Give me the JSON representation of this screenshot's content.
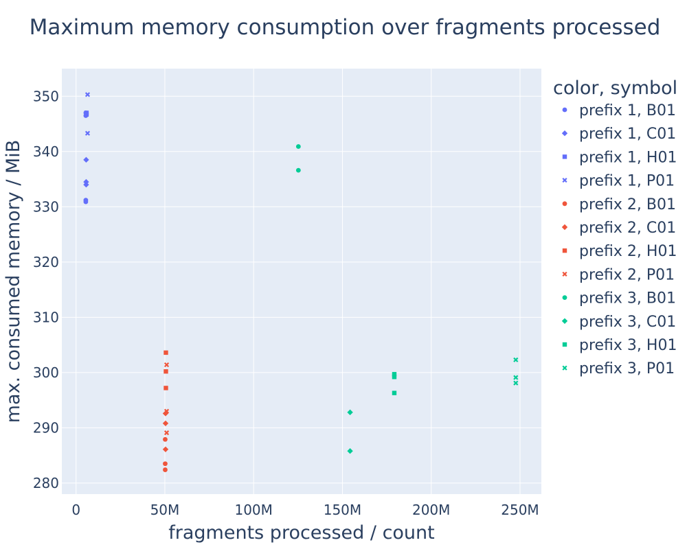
{
  "chart_data": {
    "type": "scatter",
    "title": "Maximum memory consumption over fragments processed",
    "xlabel": "fragments processed / count",
    "ylabel": "max. consumed memory / MiB",
    "xlim": [
      -8000000,
      262000000
    ],
    "ylim": [
      278,
      355
    ],
    "x_ticks": [
      0,
      50000000,
      100000000,
      150000000,
      200000000,
      250000000
    ],
    "x_tick_labels": [
      "0",
      "50M",
      "100M",
      "150M",
      "200M",
      "250M"
    ],
    "y_ticks": [
      280,
      290,
      300,
      310,
      320,
      330,
      340,
      350
    ],
    "y_tick_labels": [
      "280",
      "290",
      "300",
      "310",
      "320",
      "330",
      "340",
      "350"
    ],
    "grid": true,
    "legend_title": "color, symbol",
    "legend_position": "right",
    "colors": {
      "prefix 1": "#636efa",
      "prefix 2": "#ef553b",
      "prefix 3": "#00cc96"
    },
    "series": [
      {
        "name": "prefix 1, B01",
        "color": "#636efa",
        "symbol": "circle",
        "points": [
          [
            5500000,
            347.0
          ],
          [
            5500000,
            346.5
          ],
          [
            5500000,
            331.2
          ],
          [
            5500000,
            330.9
          ]
        ]
      },
      {
        "name": "prefix 1, C01",
        "color": "#636efa",
        "symbol": "diamond",
        "points": [
          [
            5700000,
            338.5
          ],
          [
            5700000,
            334.5
          ],
          [
            5700000,
            334.0
          ]
        ]
      },
      {
        "name": "prefix 1, H01",
        "color": "#636efa",
        "symbol": "square",
        "points": [
          [
            5900000,
            347.0
          ],
          [
            5900000,
            346.7
          ]
        ]
      },
      {
        "name": "prefix 1, P01",
        "color": "#636efa",
        "symbol": "x",
        "points": [
          [
            6500000,
            350.3
          ],
          [
            6500000,
            343.3
          ]
        ]
      },
      {
        "name": "prefix 2, B01",
        "color": "#ef553b",
        "symbol": "circle",
        "points": [
          [
            50200000,
            287.9
          ],
          [
            50200000,
            283.5
          ],
          [
            50200000,
            282.4
          ]
        ]
      },
      {
        "name": "prefix 2, C01",
        "color": "#ef553b",
        "symbol": "diamond",
        "points": [
          [
            50400000,
            292.6
          ],
          [
            50400000,
            290.8
          ],
          [
            50400000,
            286.1
          ]
        ]
      },
      {
        "name": "prefix 2, H01",
        "color": "#ef553b",
        "symbol": "square",
        "points": [
          [
            50600000,
            303.6
          ],
          [
            50600000,
            300.2
          ],
          [
            50600000,
            297.2
          ]
        ]
      },
      {
        "name": "prefix 2, P01",
        "color": "#ef553b",
        "symbol": "x",
        "points": [
          [
            51000000,
            301.4
          ],
          [
            51000000,
            293.0
          ],
          [
            51000000,
            289.1
          ]
        ]
      },
      {
        "name": "prefix 3, B01",
        "color": "#00cc96",
        "symbol": "circle",
        "points": [
          [
            125200000,
            340.9
          ],
          [
            125200000,
            336.6
          ]
        ]
      },
      {
        "name": "prefix 3, C01",
        "color": "#00cc96",
        "symbol": "diamond",
        "points": [
          [
            154300000,
            292.8
          ],
          [
            154300000,
            285.8
          ]
        ]
      },
      {
        "name": "prefix 3, H01",
        "color": "#00cc96",
        "symbol": "square",
        "points": [
          [
            179200000,
            299.7
          ],
          [
            179200000,
            299.2
          ],
          [
            179200000,
            296.3
          ]
        ]
      },
      {
        "name": "prefix 3, P01",
        "color": "#00cc96",
        "symbol": "x",
        "points": [
          [
            247600000,
            302.3
          ],
          [
            247600000,
            299.1
          ],
          [
            247600000,
            298.1
          ]
        ]
      }
    ]
  }
}
